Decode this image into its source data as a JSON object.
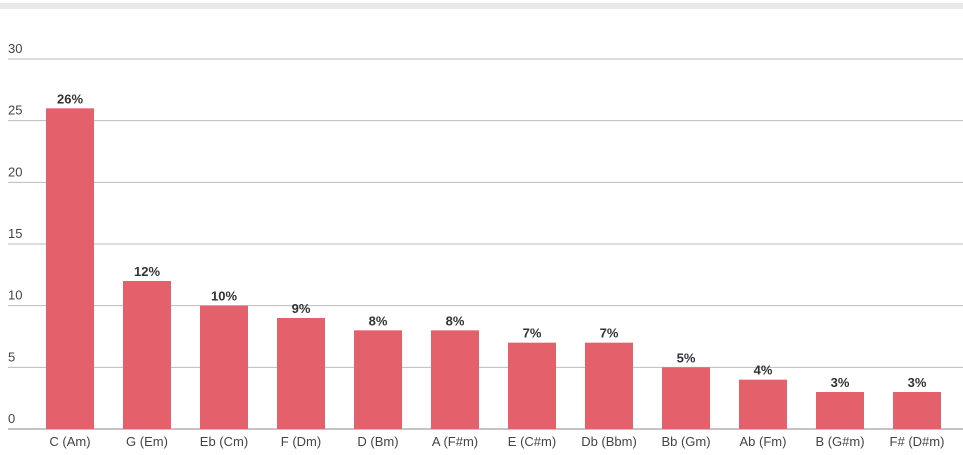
{
  "chart_data": {
    "type": "bar",
    "categories": [
      "C (Am)",
      "G (Em)",
      "Eb (Cm)",
      "F (Dm)",
      "D (Bm)",
      "A (F#m)",
      "E (C#m)",
      "Db (Bbm)",
      "Bb (Gm)",
      "Ab (Fm)",
      "B (G#m)",
      "F# (D#m)"
    ],
    "values": [
      26,
      12,
      10,
      9,
      8,
      8,
      7,
      7,
      5,
      4,
      3,
      3
    ],
    "value_labels": [
      "26%",
      "12%",
      "10%",
      "9%",
      "8%",
      "8%",
      "7%",
      "7%",
      "5%",
      "4%",
      "3%",
      "3%"
    ],
    "color": "#e4606a",
    "ylim": [
      0,
      30
    ],
    "yticks": [
      0,
      5,
      10,
      15,
      20,
      25,
      30
    ],
    "grid": true
  }
}
